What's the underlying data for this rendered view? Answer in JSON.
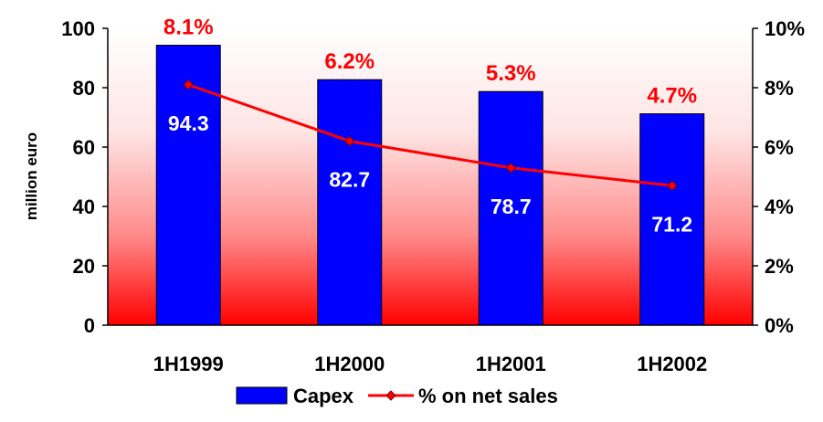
{
  "chart_data": {
    "type": "bar",
    "categories": [
      "1H1999",
      "1H2000",
      "1H2001",
      "1H2002"
    ],
    "series": [
      {
        "name": "Capex",
        "type": "bar",
        "axis": "left",
        "values": [
          94.3,
          82.7,
          78.7,
          71.2
        ],
        "labels": [
          "94.3",
          "82.7",
          "78.7",
          "71.2"
        ],
        "color": "#0000ff"
      },
      {
        "name": "% on net sales",
        "type": "line",
        "axis": "right",
        "values": [
          8.1,
          6.2,
          5.3,
          4.7
        ],
        "labels": [
          "8.1%",
          "6.2%",
          "5.3%",
          "4.7%"
        ],
        "color": "#ff0000"
      }
    ],
    "ylabel": "million euro",
    "ylim": [
      0,
      100
    ],
    "yticks": [
      "0",
      "20",
      "40",
      "60",
      "80",
      "100"
    ],
    "y2lim": [
      0,
      10
    ],
    "y2ticks": [
      "0%",
      "2%",
      "4%",
      "6%",
      "8%",
      "10%"
    ],
    "legend_position": "bottom",
    "grid": false,
    "background": "white-to-red vertical gradient"
  }
}
